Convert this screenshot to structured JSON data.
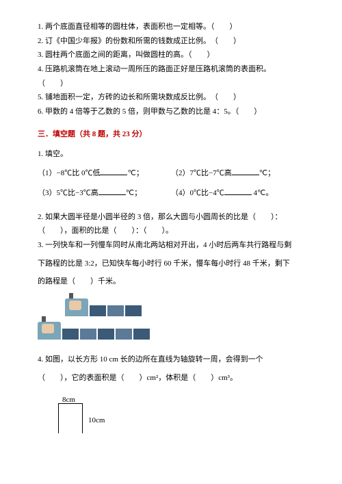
{
  "judgments": {
    "q1": "1. 两个底面直径相等的圆柱体，表面积也一定相等。（　　）",
    "q2": "2. 订《中国少年报》的份数和所需的钱数成正比例。　（　　）",
    "q3": "3. 圆柱两个底面之间的距离，叫做圆柱的高。（　　）",
    "q4a": "4. 压路机滚筒在地上滚动一周所压的路面正好是压路机滚筒的表面积。",
    "q4b": "（　　）",
    "q5": "5. 铺地面积一定，方砖的边长和所需块数成反比例。　（　　）",
    "q6": "6. 甲数的 4 倍等于乙数的 5 倍，则甲数与乙数的比是 4：5。（　　）"
  },
  "section3": {
    "title": "三．填空题（共 8 题，共 23 分）",
    "q1_head": "1. 填空。",
    "q1_1a": "（1）−8℃比 0℃低",
    "q1_1b": "℃；",
    "q1_2a": "（2）7℃比−7℃高",
    "q1_2b": "℃；",
    "q1_3a": "（3）5℃比−3℃高",
    "q1_3b": "℃；",
    "q1_4a": "（4）0℃比−4℃",
    "q1_4b": " 4℃。",
    "q2a": "2. 如果大圆半径是小圆半径的 3 倍，那么大圆与小圆周长的比是（　　）：",
    "q2b": "（　　），面积的比是（　　）：（　　）。",
    "q3a": "3. 一列快车和一列慢车同时从南北两站相对开出，4 小时后两车共行路程与剩",
    "q3b": "下路程的比是 3:2，已知快车每小时行 60 千米，慢车每小时行 48 千米，剩下",
    "q3c": "的路程是（　　）千米。",
    "q4a": "4. 如图，以长方形 10 cm 长的边所在直线为轴旋转一周，会得到一个",
    "q4b": "（　　），它的表面积是（　　）cm²，体积是（　　）cm³。",
    "fig8": "8cm",
    "fig10": "10cm"
  }
}
